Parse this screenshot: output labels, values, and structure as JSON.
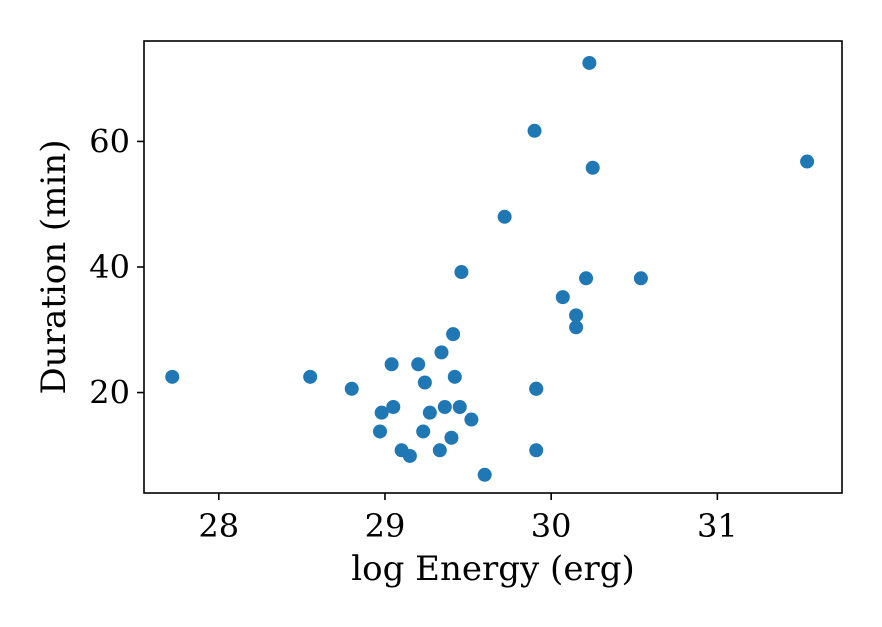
{
  "chart_data": {
    "type": "scatter",
    "title": "",
    "xlabel": "log Energy (erg)",
    "ylabel": "Duration (min)",
    "xlim": [
      27.55,
      31.75
    ],
    "ylim": [
      4.0,
      76.0
    ],
    "xticks": [
      28,
      29,
      30,
      31
    ],
    "yticks": [
      20,
      40,
      60
    ],
    "grid": false,
    "legend": "none",
    "marker_color": "#1f77b4",
    "series": [
      {
        "x": [
          27.72,
          28.55,
          28.8,
          28.97,
          28.98,
          29.04,
          29.05,
          29.1,
          29.15,
          29.2,
          29.23,
          29.24,
          29.27,
          29.33,
          29.34,
          29.36,
          29.4,
          29.41,
          29.42,
          29.45,
          29.46,
          29.52,
          29.6,
          29.72,
          29.9,
          29.91,
          29.91,
          29.91,
          30.07,
          30.15,
          30.15,
          30.21,
          30.23,
          30.25,
          30.54,
          31.54
        ],
        "y": [
          22.5,
          22.5,
          20.6,
          13.8,
          16.8,
          24.5,
          17.7,
          10.8,
          9.9,
          24.5,
          13.8,
          21.6,
          16.8,
          10.8,
          26.4,
          17.7,
          12.8,
          29.3,
          22.5,
          17.7,
          39.2,
          15.7,
          6.9,
          48.0,
          61.7,
          20.6,
          10.8,
          20.6,
          35.2,
          32.3,
          30.4,
          38.2,
          72.5,
          55.8,
          38.2,
          56.8
        ]
      }
    ]
  }
}
